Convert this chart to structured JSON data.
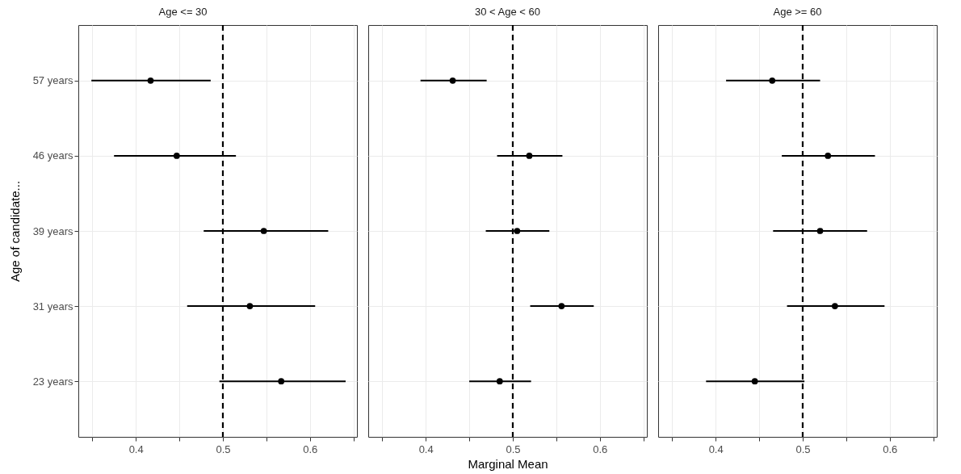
{
  "chart_data": [
    {
      "type": "scatter",
      "orientation": "horizontal",
      "title": "Age <= 30",
      "ylabel": "Age of candidate...",
      "categories": [
        "57 years",
        "46 years",
        "39 years",
        "31 years",
        "23 years"
      ],
      "values": [
        0.417,
        0.447,
        0.547,
        0.531,
        0.567
      ],
      "errors": [
        [
          0.349,
          0.486
        ],
        [
          0.375,
          0.515
        ],
        [
          0.478,
          0.621
        ],
        [
          0.459,
          0.606
        ],
        [
          0.496,
          0.641
        ]
      ],
      "color": "#000000",
      "marker": "circle",
      "xlim": [
        0.334,
        0.654
      ],
      "xticks": [
        {
          "value": 0.35,
          "label": null
        },
        0.4,
        {
          "value": 0.45,
          "label": null
        },
        0.5,
        {
          "value": 0.55,
          "label": null
        },
        0.6,
        {
          "value": 0.65,
          "label": null
        }
      ],
      "grid": true,
      "ref_lines": [
        {
          "axis": "x",
          "value": 0.5,
          "line_style": "dashed",
          "color": "#000000"
        }
      ]
    },
    {
      "type": "scatter",
      "orientation": "horizontal",
      "title": "30 < Age < 60",
      "xlabel": "Marginal Mean",
      "tick_labels": "x",
      "categories": [
        "57 years",
        "46 years",
        "39 years",
        "31 years",
        "23 years"
      ],
      "values": [
        0.431,
        0.519,
        0.505,
        0.556,
        0.485
      ],
      "errors": [
        [
          0.394,
          0.47
        ],
        [
          0.482,
          0.557
        ],
        [
          0.469,
          0.542
        ],
        [
          0.52,
          0.593
        ],
        [
          0.45,
          0.521
        ]
      ],
      "color": "#000000",
      "marker": "circle",
      "xlim": [
        0.334,
        0.654
      ],
      "xticks": [
        {
          "value": 0.35,
          "label": null
        },
        0.4,
        {
          "value": 0.45,
          "label": null
        },
        0.5,
        {
          "value": 0.55,
          "label": null
        },
        0.6,
        {
          "value": 0.65,
          "label": null
        }
      ],
      "grid": true,
      "ref_lines": [
        {
          "axis": "x",
          "value": 0.5,
          "line_style": "dashed",
          "color": "#000000"
        }
      ]
    },
    {
      "type": "scatter",
      "orientation": "horizontal",
      "title": "Age >= 60",
      "tick_labels": "x",
      "categories": [
        "57 years",
        "46 years",
        "39 years",
        "31 years",
        "23 years"
      ],
      "values": [
        0.465,
        0.529,
        0.52,
        0.537,
        0.445
      ],
      "errors": [
        [
          0.412,
          0.52
        ],
        [
          0.476,
          0.583
        ],
        [
          0.466,
          0.574
        ],
        [
          0.482,
          0.594
        ],
        [
          0.389,
          0.502
        ]
      ],
      "color": "#000000",
      "marker": "circle",
      "xlim": [
        0.334,
        0.654
      ],
      "xticks": [
        {
          "value": 0.35,
          "label": null
        },
        0.4,
        {
          "value": 0.45,
          "label": null
        },
        0.5,
        {
          "value": 0.55,
          "label": null
        },
        0.6,
        {
          "value": 0.65,
          "label": null
        }
      ],
      "grid": true,
      "ref_lines": [
        {
          "axis": "x",
          "value": 0.5,
          "line_style": "dashed",
          "color": "#000000"
        }
      ]
    }
  ]
}
